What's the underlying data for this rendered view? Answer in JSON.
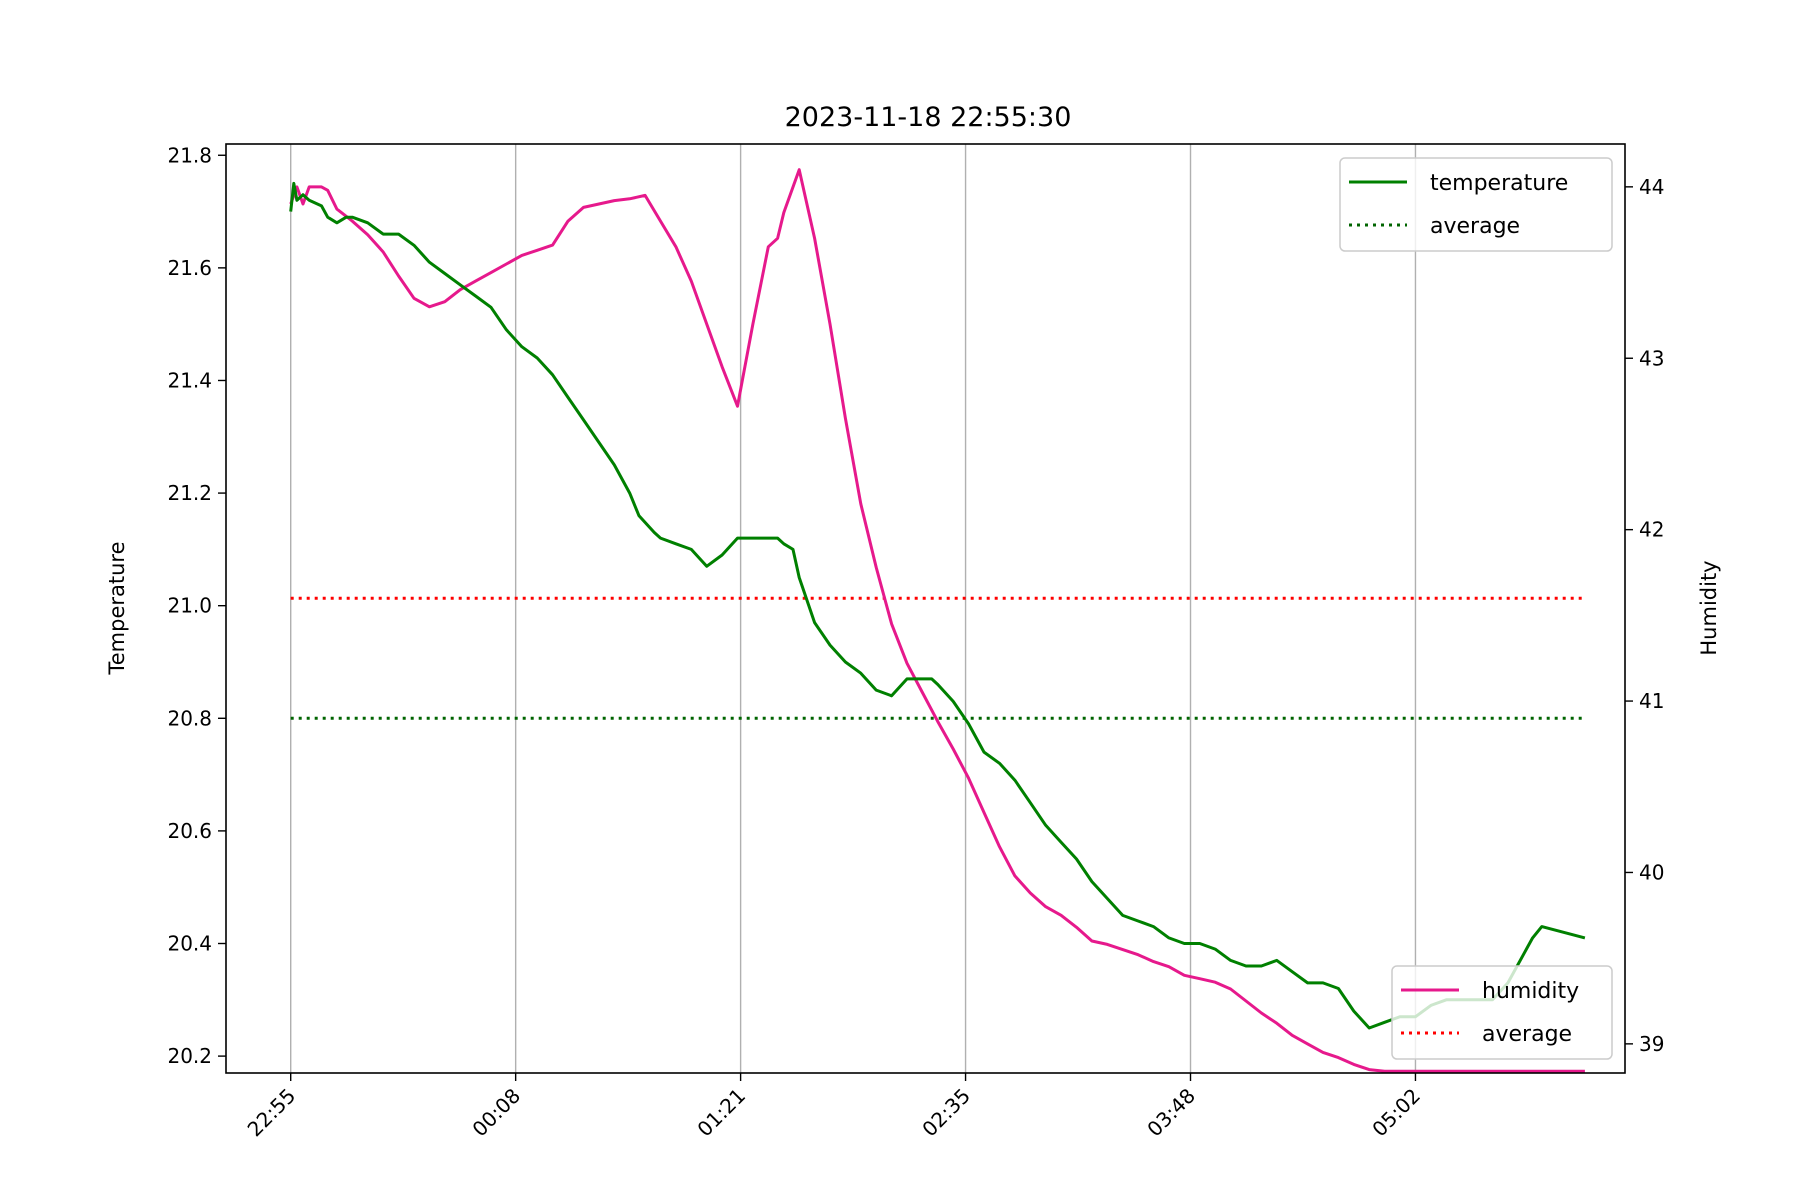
{
  "chart_data": {
    "type": "line",
    "title": "2023-11-18 22:55:30",
    "ylabel_left": "Temperature",
    "ylabel_right": "Humidity",
    "xlabel": "",
    "x_ticks": [
      "22:55",
      "00:08",
      "01:21",
      "02:35",
      "03:48",
      "05:02"
    ],
    "x_tick_minutes": [
      0,
      73,
      146,
      219,
      292,
      365
    ],
    "xlim_minutes": [
      -21,
      433
    ],
    "y_left_ticks": [
      "20.2",
      "20.4",
      "20.6",
      "20.8",
      "21.0",
      "21.2",
      "21.4",
      "21.6",
      "21.8"
    ],
    "y_left_lim": [
      20.17,
      21.82
    ],
    "y_right_ticks": [
      "39",
      "40",
      "41",
      "42",
      "43",
      "44"
    ],
    "y_right_lim": [
      38.83,
      44.25
    ],
    "grid": "vertical",
    "legend_top": {
      "position": "upper-right",
      "entries": [
        "temperature",
        "average"
      ]
    },
    "legend_bottom": {
      "position": "lower-right",
      "entries": [
        "humidity",
        "average"
      ]
    },
    "colors": {
      "temperature": "#008000",
      "temperature_average": "#006400",
      "humidity": "#e6198c",
      "humidity_average": "#ff0000"
    },
    "series": [
      {
        "name": "temperature",
        "axis": "left",
        "style": "solid",
        "color": "#008000",
        "x": [
          0,
          1,
          2,
          4,
          6,
          10,
          12,
          15,
          18,
          20,
          25,
          30,
          35,
          40,
          45,
          50,
          55,
          60,
          65,
          70,
          75,
          80,
          85,
          90,
          95,
          100,
          105,
          110,
          113,
          118,
          120,
          125,
          130,
          135,
          140,
          145,
          150,
          155,
          158,
          160,
          163,
          165,
          170,
          175,
          180,
          185,
          190,
          195,
          200,
          205,
          208,
          210,
          215,
          220,
          225,
          230,
          235,
          240,
          245,
          250,
          255,
          260,
          265,
          270,
          275,
          280,
          285,
          290,
          295,
          300,
          305,
          310,
          315,
          320,
          325,
          330,
          335,
          340,
          345,
          350,
          355,
          360,
          365,
          370,
          375,
          380,
          385,
          390,
          395,
          400,
          403,
          406,
          420
        ],
        "values": [
          21.7,
          21.75,
          21.72,
          21.73,
          21.72,
          21.71,
          21.69,
          21.68,
          21.69,
          21.69,
          21.68,
          21.66,
          21.66,
          21.64,
          21.61,
          21.59,
          21.57,
          21.55,
          21.53,
          21.49,
          21.46,
          21.44,
          21.41,
          21.37,
          21.33,
          21.29,
          21.25,
          21.2,
          21.16,
          21.13,
          21.12,
          21.11,
          21.1,
          21.07,
          21.09,
          21.12,
          21.12,
          21.12,
          21.12,
          21.11,
          21.1,
          21.05,
          20.97,
          20.93,
          20.9,
          20.88,
          20.85,
          20.84,
          20.87,
          20.87,
          20.87,
          20.86,
          20.83,
          20.79,
          20.74,
          20.72,
          20.69,
          20.65,
          20.61,
          20.58,
          20.55,
          20.51,
          20.48,
          20.45,
          20.44,
          20.43,
          20.41,
          20.4,
          20.4,
          20.39,
          20.37,
          20.36,
          20.36,
          20.37,
          20.35,
          20.33,
          20.33,
          20.32,
          20.28,
          20.25,
          20.26,
          20.27,
          20.27,
          20.29,
          20.3,
          20.3,
          20.3,
          20.3,
          20.33,
          20.38,
          20.41,
          20.43,
          20.41
        ]
      },
      {
        "name": "average",
        "axis": "left",
        "style": "dotted",
        "color": "#006400",
        "x": [
          0,
          420
        ],
        "values": [
          20.8,
          20.8
        ]
      },
      {
        "name": "humidity",
        "axis": "right",
        "style": "solid",
        "color": "#e6198c",
        "x": [
          0,
          2,
          4,
          6,
          8,
          10,
          12,
          15,
          20,
          25,
          30,
          35,
          40,
          45,
          50,
          55,
          60,
          65,
          70,
          75,
          80,
          85,
          90,
          95,
          100,
          105,
          110,
          115,
          120,
          125,
          130,
          135,
          140,
          145,
          150,
          155,
          158,
          160,
          165,
          170,
          175,
          180,
          185,
          190,
          195,
          200,
          205,
          210,
          215,
          220,
          225,
          230,
          235,
          240,
          245,
          250,
          255,
          260,
          265,
          270,
          275,
          280,
          285,
          290,
          295,
          300,
          305,
          310,
          315,
          320,
          325,
          330,
          335,
          340,
          345,
          350,
          355,
          360,
          365,
          370,
          375,
          380,
          385,
          390,
          395,
          400,
          405,
          410,
          415,
          420
        ],
        "values": [
          43.9,
          44.0,
          43.9,
          44.0,
          44.0,
          44.0,
          43.98,
          43.87,
          43.8,
          43.72,
          43.62,
          43.48,
          43.35,
          43.3,
          43.33,
          43.4,
          43.45,
          43.5,
          43.55,
          43.6,
          43.63,
          43.66,
          43.8,
          43.88,
          43.9,
          43.92,
          43.93,
          43.95,
          43.8,
          43.65,
          43.45,
          43.2,
          42.95,
          42.72,
          43.2,
          43.65,
          43.7,
          43.85,
          44.1,
          43.7,
          43.2,
          42.65,
          42.15,
          41.78,
          41.45,
          41.22,
          41.05,
          40.88,
          40.72,
          40.55,
          40.35,
          40.15,
          39.98,
          39.88,
          39.8,
          39.75,
          39.68,
          39.6,
          39.58,
          39.55,
          39.52,
          39.48,
          39.45,
          39.4,
          39.38,
          39.36,
          39.32,
          39.25,
          39.18,
          39.12,
          39.05,
          39.0,
          38.95,
          38.92,
          38.88,
          38.85,
          38.84,
          38.84,
          38.84,
          38.84,
          38.84,
          38.84,
          38.84,
          38.84,
          38.84,
          38.84,
          38.84,
          38.84,
          38.84,
          38.84
        ]
      },
      {
        "name": "average",
        "axis": "right",
        "style": "dotted",
        "color": "#ff0000",
        "x": [
          0,
          420
        ],
        "values": [
          41.6,
          41.6
        ]
      }
    ]
  }
}
